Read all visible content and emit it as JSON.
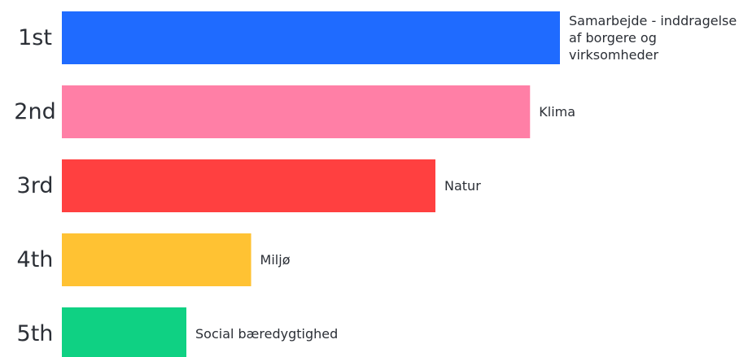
{
  "chart_data": {
    "type": "bar",
    "orientation": "horizontal",
    "ranks": [
      "1st",
      "2nd",
      "3rd",
      "4th",
      "5th"
    ],
    "categories": [
      [
        "Samarbejde - inddragelse",
        "af borgere og",
        "virksomheder"
      ],
      [
        "Klima"
      ],
      [
        "Natur"
      ],
      [
        "Miljø"
      ],
      [
        "Social bæredygtighed"
      ]
    ],
    "values": [
      5,
      4.7,
      3.75,
      1.9,
      1.25
    ],
    "colors": [
      "#1f6bff",
      "#ff7fa6",
      "#ff4040",
      "#ffc233",
      "#0fd183"
    ],
    "title": "",
    "xlabel": "",
    "ylabel": "",
    "grid": false,
    "legend": "none"
  }
}
